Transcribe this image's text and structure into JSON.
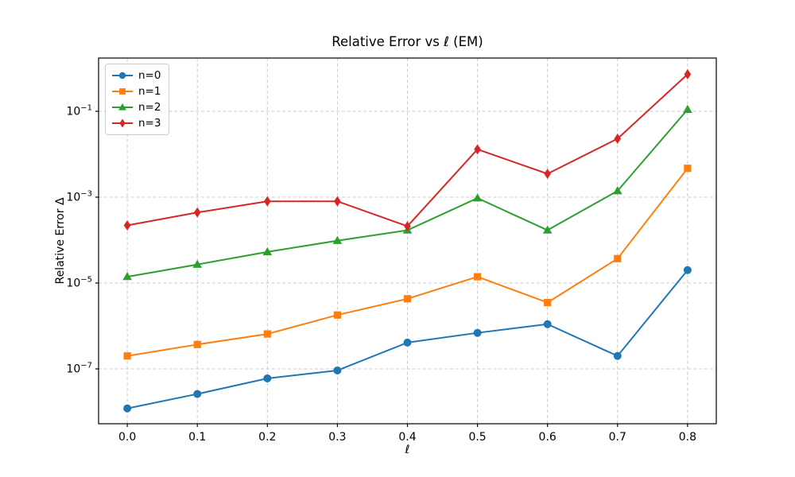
{
  "chart_data": {
    "type": "line",
    "title": "Relative Error vs ℓ (EM)",
    "xlabel": "ℓ",
    "ylabel": "Relative Error Δ",
    "x": [
      0.0,
      0.1,
      0.2,
      0.3,
      0.4,
      0.5,
      0.6,
      0.7,
      0.8
    ],
    "series": [
      {
        "name": "n=0",
        "color": "#1f77b4",
        "marker": "circle",
        "values": [
          1.2e-08,
          2.6e-08,
          6e-08,
          9.2e-08,
          4.1e-07,
          6.9e-07,
          1.1e-06,
          2e-07,
          2e-05
        ]
      },
      {
        "name": "n=1",
        "color": "#ff7f0e",
        "marker": "square",
        "values": [
          2e-07,
          3.7e-07,
          6.5e-07,
          1.8e-06,
          4.3e-06,
          1.4e-05,
          3.5e-06,
          3.7e-05,
          0.0047
        ]
      },
      {
        "name": "n=2",
        "color": "#2ca02c",
        "marker": "triangle",
        "values": [
          1.4e-05,
          2.7e-05,
          5.3e-05,
          9.7e-05,
          0.00017,
          0.00095,
          0.00017,
          0.0014,
          0.11
        ]
      },
      {
        "name": "n=3",
        "color": "#d62728",
        "marker": "diamond",
        "values": [
          0.00022,
          0.00044,
          0.0008,
          0.0008,
          0.00021,
          0.013,
          0.0035,
          0.023,
          0.73
        ]
      }
    ],
    "x_ticks": [
      {
        "value": 0.0,
        "label": "0.0"
      },
      {
        "value": 0.1,
        "label": "0.1"
      },
      {
        "value": 0.2,
        "label": "0.2"
      },
      {
        "value": 0.3,
        "label": "0.3"
      },
      {
        "value": 0.4,
        "label": "0.4"
      },
      {
        "value": 0.5,
        "label": "0.5"
      },
      {
        "value": 0.6,
        "label": "0.6"
      },
      {
        "value": 0.7,
        "label": "0.7"
      },
      {
        "value": 0.8,
        "label": "0.8"
      }
    ],
    "y_ticks": [
      {
        "exp": -1,
        "label": "10⁻¹"
      },
      {
        "exp": -3,
        "label": "10⁻³"
      },
      {
        "exp": -5,
        "label": "10⁻⁵"
      },
      {
        "exp": -7,
        "label": "10⁻⁷"
      }
    ],
    "xlim": [
      -0.041,
      0.841
    ],
    "ylim_exp": [
      -8.278,
      0.241
    ],
    "y_scale": "log",
    "grid": true,
    "grid_color": "#cbcbcb",
    "axis_color": "#000000",
    "legend_position": "upper left"
  }
}
